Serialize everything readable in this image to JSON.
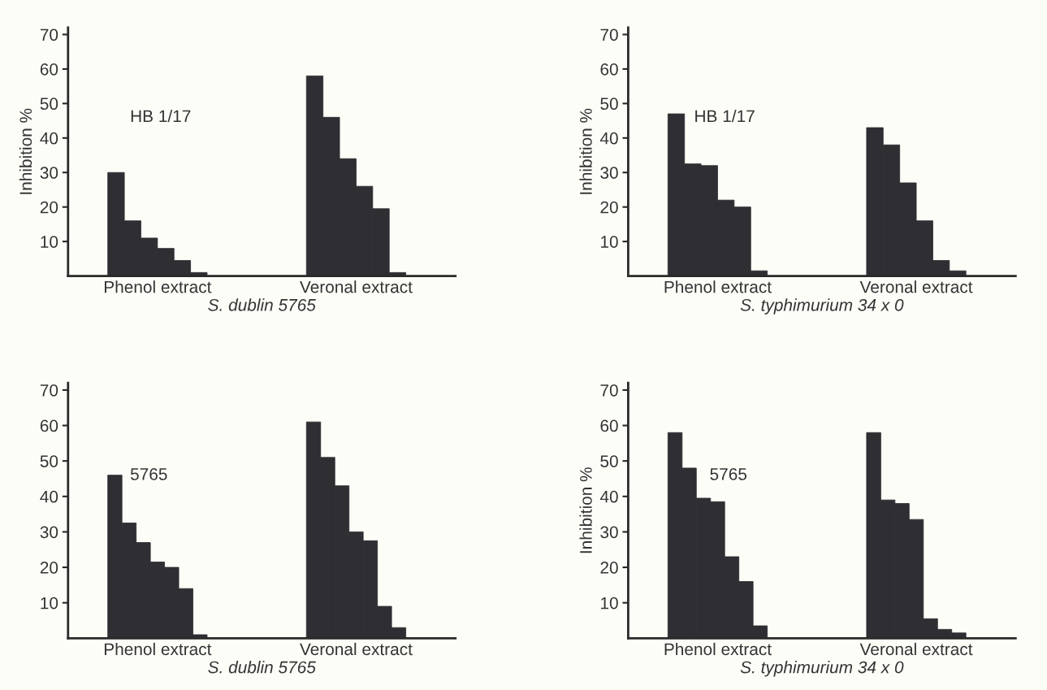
{
  "chart_data": [
    {
      "type": "bar",
      "xlabel": "S. dublin 5765",
      "ylabel": "Inhibition %",
      "annotations": [
        "HB 1/17"
      ],
      "categories": [
        "Phenol extract",
        "Veronal extract"
      ],
      "ylim": [
        0,
        72
      ],
      "yticks": [
        10,
        20,
        30,
        40,
        50,
        60,
        70
      ],
      "grid": false,
      "series": [
        {
          "color": "#2e2e33",
          "values": [
            30,
            58
          ]
        },
        {
          "color": "#2e2e33",
          "values": [
            16,
            46
          ]
        },
        {
          "color": "#2e2e33",
          "values": [
            11,
            34
          ]
        },
        {
          "color": "#2e2e33",
          "values": [
            8,
            26
          ]
        },
        {
          "color": "#2e2e33",
          "values": [
            4.5,
            19.5
          ]
        },
        {
          "color": "#2e2e33",
          "values": [
            1,
            1
          ]
        }
      ]
    },
    {
      "type": "bar",
      "xlabel": "S. typhimurium 34 x 0",
      "ylabel": "Inhibition %",
      "annotations": [
        "HB 1/17"
      ],
      "categories": [
        "Phenol extract",
        "Veronal extract"
      ],
      "ylim": [
        0,
        72
      ],
      "yticks": [
        10,
        20,
        30,
        40,
        50,
        60,
        70
      ],
      "grid": false,
      "series": [
        {
          "color": "#2e2e33",
          "values": [
            47,
            43
          ]
        },
        {
          "color": "#2e2e33",
          "values": [
            32.5,
            38
          ]
        },
        {
          "color": "#2e2e33",
          "values": [
            32,
            27
          ]
        },
        {
          "color": "#2e2e33",
          "values": [
            22,
            16
          ]
        },
        {
          "color": "#2e2e33",
          "values": [
            20,
            4.5
          ]
        },
        {
          "color": "#2e2e33",
          "values": [
            1.5,
            1.5
          ]
        }
      ]
    },
    {
      "type": "bar",
      "xlabel": "S. dublin 5765",
      "annotations": [
        "5765"
      ],
      "categories": [
        "Phenol extract",
        "Veronal extract"
      ],
      "ylim": [
        0,
        72
      ],
      "yticks": [
        10,
        20,
        30,
        40,
        50,
        60,
        70
      ],
      "grid": false,
      "series": [
        {
          "color": "#2e2e33",
          "values": [
            46,
            61
          ]
        },
        {
          "color": "#2e2e33",
          "values": [
            32.5,
            51
          ]
        },
        {
          "color": "#2e2e33",
          "values": [
            27,
            43
          ]
        },
        {
          "color": "#2e2e33",
          "values": [
            21.5,
            30
          ]
        },
        {
          "color": "#2e2e33",
          "values": [
            20,
            27.5
          ]
        },
        {
          "color": "#2e2e33",
          "values": [
            14,
            9
          ]
        },
        {
          "color": "#2e2e33",
          "values": [
            1,
            3
          ]
        }
      ]
    },
    {
      "type": "bar",
      "xlabel": "S. typhimurium 34 x 0",
      "ylabel": "Inhibition %",
      "annotations": [
        "5765"
      ],
      "categories": [
        "Phenol extract",
        "Veronal extract"
      ],
      "ylim": [
        0,
        72
      ],
      "yticks": [
        10,
        20,
        30,
        40,
        50,
        60,
        70
      ],
      "grid": false,
      "series": [
        {
          "color": "#2e2e33",
          "values": [
            58,
            58
          ]
        },
        {
          "color": "#2e2e33",
          "values": [
            48,
            39
          ]
        },
        {
          "color": "#2e2e33",
          "values": [
            39.5,
            38
          ]
        },
        {
          "color": "#2e2e33",
          "values": [
            38.5,
            33.5
          ]
        },
        {
          "color": "#2e2e33",
          "values": [
            23,
            5.5
          ]
        },
        {
          "color": "#2e2e33",
          "values": [
            16,
            2.5
          ]
        },
        {
          "color": "#2e2e33",
          "values": [
            3.5,
            1.5
          ]
        }
      ]
    }
  ]
}
